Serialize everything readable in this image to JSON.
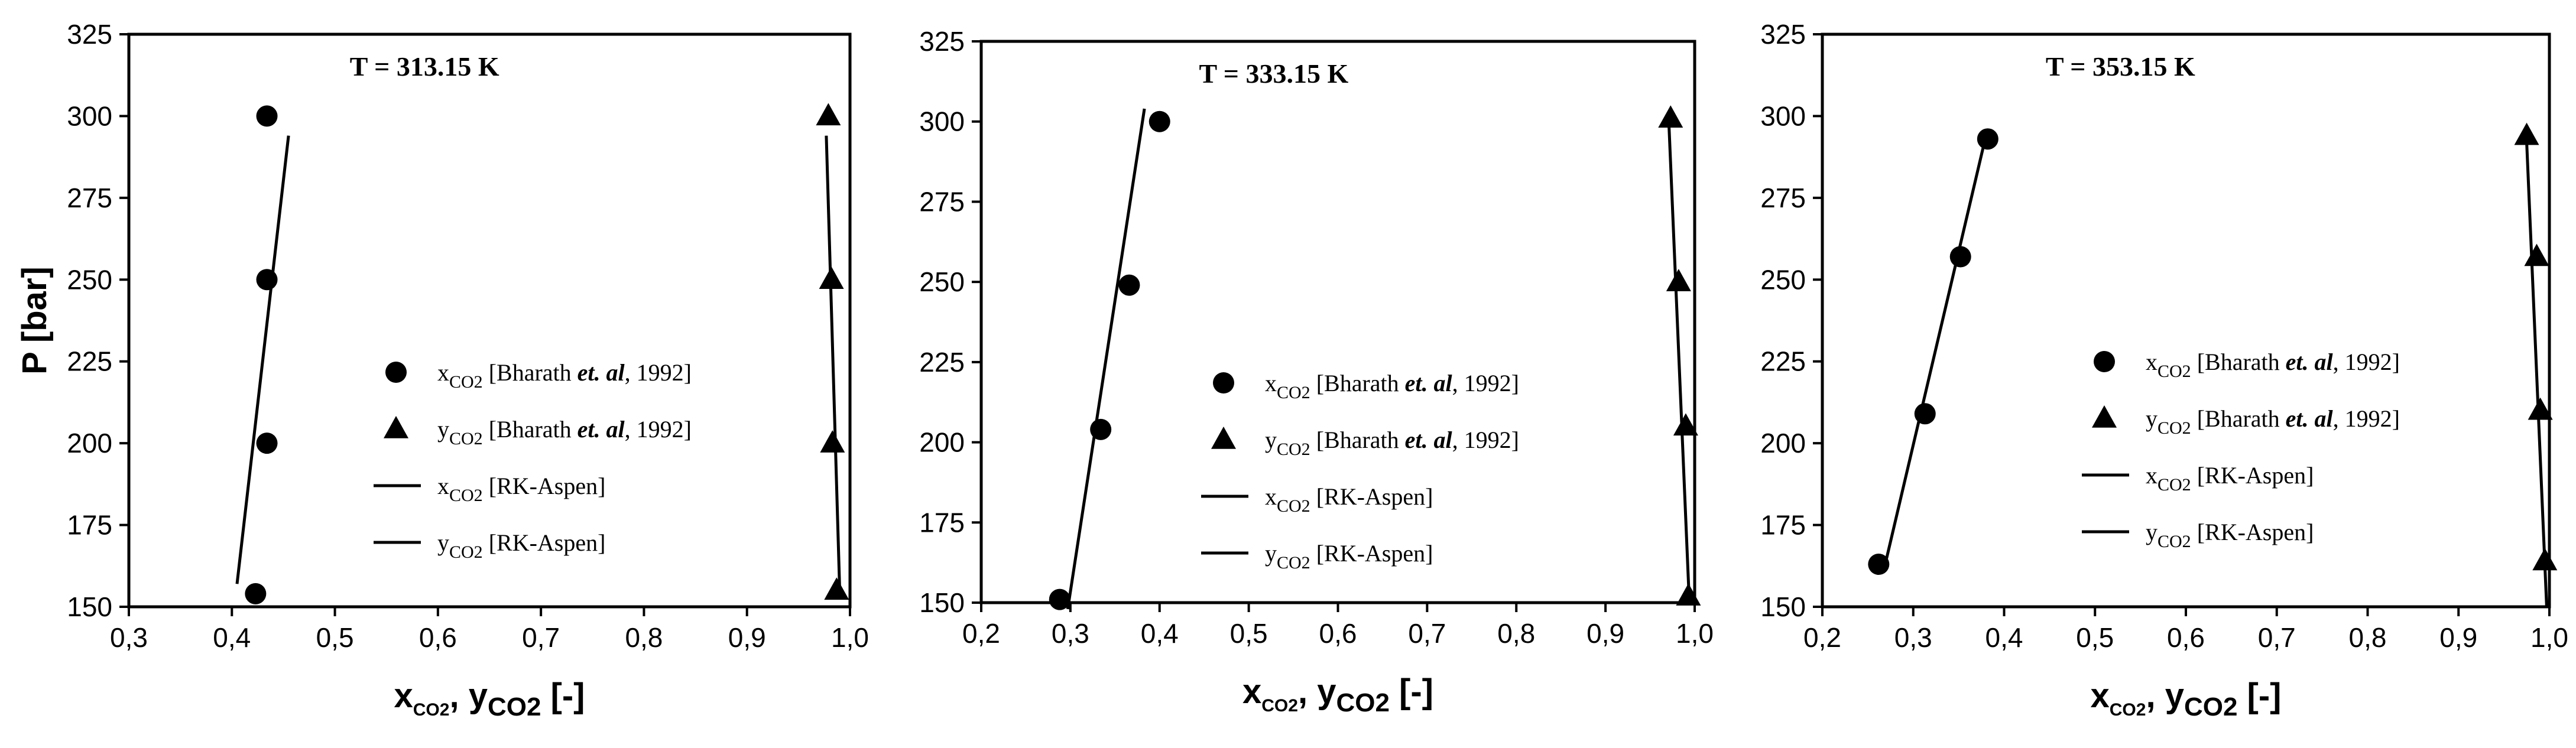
{
  "chart_data": [
    {
      "type": "scatter",
      "title": "T = 313.15 K",
      "ylabel": "P [bar]",
      "xlabel": {
        "x": "x",
        "x_sub": "CO2",
        "sep": ", ",
        "y": "y",
        "y_sub": "CO2",
        "unit": " [-]"
      },
      "xlim": [
        0.3,
        1.0
      ],
      "ylim": [
        150,
        325
      ],
      "xticks": [
        "0,3",
        "0,4",
        "0,5",
        "0,6",
        "0,7",
        "0,8",
        "0,9",
        "1,0"
      ],
      "yticks": [
        "150",
        "175",
        "200",
        "225",
        "250",
        "275",
        "300",
        "325"
      ],
      "legend": {
        "placement": "center-right",
        "entries": [
          {
            "marker": "circle",
            "var": "x",
            "sub": "CO2",
            "label": " [Bharath ",
            "italic": "et. al",
            "tail": ", 1992]"
          },
          {
            "marker": "triangle",
            "var": "y",
            "sub": "CO2",
            "label": " [Bharath ",
            "italic": "et. al",
            "tail": ", 1992]"
          },
          {
            "marker": "line",
            "var": "x",
            "sub": "CO2",
            "label": " [RK-Aspen]",
            "italic": "",
            "tail": ""
          },
          {
            "marker": "line",
            "var": "y",
            "sub": "CO2",
            "label": " [RK-Aspen]",
            "italic": "",
            "tail": ""
          }
        ]
      },
      "series": [
        {
          "marker": "circle",
          "x": [
            0.423,
            0.434,
            0.434,
            0.434
          ],
          "y": [
            154,
            200,
            250,
            300
          ]
        },
        {
          "marker": "triangle",
          "x": [
            0.987,
            0.983,
            0.982,
            0.979
          ],
          "y": [
            155,
            200,
            250,
            300
          ]
        },
        {
          "marker": "line",
          "x": [
            0.405,
            0.455
          ],
          "y": [
            157,
            294
          ]
        },
        {
          "marker": "line",
          "x": [
            0.99,
            0.977
          ],
          "y": [
            155,
            294
          ]
        }
      ]
    },
    {
      "type": "scatter",
      "title": "T = 333.15 K",
      "ylabel": "",
      "xlabel": {
        "x": "x",
        "x_sub": "CO2",
        "sep": ", ",
        "y": "y",
        "y_sub": "CO2",
        "unit": " [-]"
      },
      "xlim": [
        0.2,
        1.0
      ],
      "ylim": [
        150,
        325
      ],
      "xticks": [
        "0,2",
        "0,3",
        "0,4",
        "0,5",
        "0,6",
        "0,7",
        "0,8",
        "0,9",
        "1,0"
      ],
      "yticks": [
        "150",
        "175",
        "200",
        "225",
        "250",
        "275",
        "300",
        "325"
      ],
      "legend": {
        "placement": "center-right",
        "entries": [
          {
            "marker": "circle",
            "var": "x",
            "sub": "CO2",
            "label": " [Bharath ",
            "italic": "et. al",
            "tail": ", 1992]"
          },
          {
            "marker": "triangle",
            "var": "y",
            "sub": "CO2",
            "label": " [Bharath ",
            "italic": "et. al",
            "tail": ", 1992]"
          },
          {
            "marker": "line",
            "var": "x",
            "sub": "CO2",
            "label": " [RK-Aspen]",
            "italic": "",
            "tail": ""
          },
          {
            "marker": "line",
            "var": "y",
            "sub": "CO2",
            "label": " [RK-Aspen]",
            "italic": "",
            "tail": ""
          }
        ]
      },
      "series": [
        {
          "marker": "circle",
          "x": [
            0.288,
            0.334,
            0.366,
            0.4
          ],
          "y": [
            151,
            204,
            249,
            300
          ]
        },
        {
          "marker": "triangle",
          "x": [
            0.993,
            0.99,
            0.982,
            0.973
          ],
          "y": [
            152,
            205,
            250,
            301
          ]
        },
        {
          "marker": "line",
          "x": [
            0.297,
            0.383
          ],
          "y": [
            148,
            304
          ]
        },
        {
          "marker": "line",
          "x": [
            0.994,
            0.971
          ],
          "y": [
            150,
            300
          ]
        }
      ]
    },
    {
      "type": "scatter",
      "title": "T = 353.15 K",
      "ylabel": "",
      "xlabel": {
        "x": "x",
        "x_sub": "CO2",
        "sep": ", ",
        "y": "y",
        "y_sub": "CO2",
        "unit": " [-]"
      },
      "xlim": [
        0.2,
        1.0
      ],
      "ylim": [
        150,
        325
      ],
      "xticks": [
        "0,2",
        "0,3",
        "0,4",
        "0,5",
        "0,6",
        "0,7",
        "0,8",
        "0,9",
        "1,0"
      ],
      "yticks": [
        "150",
        "175",
        "200",
        "225",
        "250",
        "275",
        "300",
        "325"
      ],
      "legend": {
        "placement": "center-right",
        "entries": [
          {
            "marker": "circle",
            "var": "x",
            "sub": "CO2",
            "label": " [Bharath ",
            "italic": "et. al",
            "tail": ", 1992]"
          },
          {
            "marker": "triangle",
            "var": "y",
            "sub": "CO2",
            "label": " [Bharath ",
            "italic": "et. al",
            "tail": ", 1992]"
          },
          {
            "marker": "line",
            "var": "x",
            "sub": "CO2",
            "label": " [RK-Aspen]",
            "italic": "",
            "tail": ""
          },
          {
            "marker": "line",
            "var": "y",
            "sub": "CO2",
            "label": " [RK-Aspen]",
            "italic": "",
            "tail": ""
          }
        ]
      },
      "series": [
        {
          "marker": "circle",
          "x": [
            0.262,
            0.313,
            0.352,
            0.382
          ],
          "y": [
            163,
            209,
            257,
            293
          ]
        },
        {
          "marker": "triangle",
          "x": [
            0.995,
            0.99,
            0.986,
            0.975
          ],
          "y": [
            164,
            210,
            257,
            294
          ]
        },
        {
          "marker": "line",
          "x": [
            0.27,
            0.38
          ],
          "y": [
            164,
            294
          ]
        },
        {
          "marker": "line",
          "x": [
            0.997,
            0.975
          ],
          "y": [
            150,
            292
          ]
        }
      ]
    }
  ]
}
